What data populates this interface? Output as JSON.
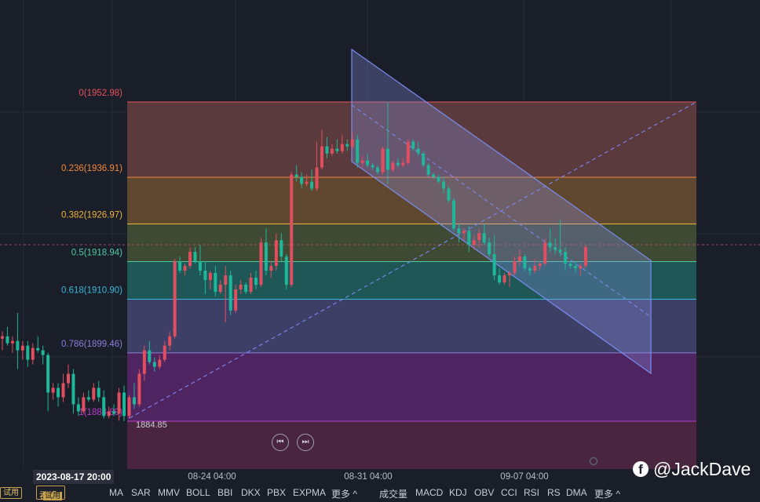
{
  "chart_data": {
    "type": "candlestick",
    "title": "",
    "price_scale": [
      1870,
      1965
    ],
    "low_marker": "1884.85",
    "fib_levels": [
      {
        "ratio": "0",
        "price": 1952.98,
        "label": "0(1952.98)",
        "color": "#e8515b"
      },
      {
        "ratio": "0.236",
        "price": 1936.91,
        "label": "0.236(1936.91)",
        "color": "#f08a3c"
      },
      {
        "ratio": "0.382",
        "price": 1926.97,
        "label": "0.382(1926.97)",
        "color": "#f0b43c"
      },
      {
        "ratio": "0.5",
        "price": 1918.94,
        "label": "0.5(1918.94)",
        "color": "#4ec9a0"
      },
      {
        "ratio": "0.618",
        "price": 1910.9,
        "label": "0.618(1910.90)",
        "color": "#39b7d8"
      },
      {
        "ratio": "0.786",
        "price": 1899.46,
        "label": "0.786(1899.46)",
        "color": "#8e7ddb"
      },
      {
        "ratio": "1",
        "price": 1884.89,
        "label": "1(1884.89)",
        "color": "#b83dc8"
      }
    ],
    "x_ticks": [
      "08-24 04:00",
      "08-31 04:00",
      "09-07 04:00"
    ],
    "cursor_date": "2023-08-17 20:00",
    "candles": [
      [
        1902.5,
        1904.0,
        1900.0,
        1903.0
      ],
      [
        1903.0,
        1905.0,
        1901.0,
        1901.5
      ],
      [
        1901.5,
        1903.0,
        1899.5,
        1902.0
      ],
      [
        1902.0,
        1908.0,
        1896.0,
        1900.0
      ],
      [
        1900.0,
        1902.0,
        1898.0,
        1901.0
      ],
      [
        1901.0,
        1902.0,
        1896.5,
        1898.0
      ],
      [
        1898.0,
        1901.5,
        1897.0,
        1900.5
      ],
      [
        1900.5,
        1903.0,
        1899.5,
        1900.0
      ],
      [
        1900.0,
        1901.0,
        1897.0,
        1899.0
      ],
      [
        1899.0,
        1899.5,
        1887.0,
        1891.0
      ],
      [
        1891.0,
        1893.0,
        1889.5,
        1892.0
      ],
      [
        1892.0,
        1893.0,
        1888.0,
        1890.0
      ],
      [
        1890.0,
        1895.0,
        1889.0,
        1893.0
      ],
      [
        1893.0,
        1897.0,
        1892.0,
        1895.0
      ],
      [
        1895.0,
        1896.0,
        1886.5,
        1888.5
      ],
      [
        1888.5,
        1890.0,
        1886.0,
        1887.0
      ],
      [
        1887.0,
        1891.0,
        1886.5,
        1890.0
      ],
      [
        1890.0,
        1891.5,
        1889.0,
        1889.5
      ],
      [
        1889.5,
        1893.0,
        1889.0,
        1892.0
      ],
      [
        1892.0,
        1893.5,
        1889.0,
        1890.0
      ],
      [
        1890.0,
        1891.5,
        1885.5,
        1886.0
      ],
      [
        1886.0,
        1888.0,
        1885.5,
        1887.0
      ],
      [
        1887.0,
        1888.5,
        1886.0,
        1886.5
      ],
      [
        1886.5,
        1892.0,
        1885.0,
        1891.0
      ],
      [
        1891.0,
        1892.5,
        1884.9,
        1886.0
      ],
      [
        1886.0,
        1890.5,
        1885.5,
        1890.0
      ],
      [
        1890.0,
        1893.0,
        1887.5,
        1888.5
      ],
      [
        1888.5,
        1896.0,
        1888.0,
        1895.0
      ],
      [
        1895.0,
        1901.0,
        1893.5,
        1900.0
      ],
      [
        1900.0,
        1902.0,
        1897.0,
        1897.5
      ],
      [
        1897.5,
        1898.5,
        1895.5,
        1896.5
      ],
      [
        1896.5,
        1899.0,
        1896.0,
        1898.0
      ],
      [
        1898.0,
        1902.0,
        1897.5,
        1901.0
      ],
      [
        1901.0,
        1904.0,
        1900.0,
        1903.0
      ],
      [
        1903.0,
        1919.5,
        1902.5,
        1919.0
      ],
      [
        1919.0,
        1920.0,
        1916.5,
        1917.0
      ],
      [
        1917.0,
        1918.5,
        1916.0,
        1918.0
      ],
      [
        1918.0,
        1922.0,
        1917.5,
        1921.0
      ],
      [
        1921.0,
        1922.0,
        1918.5,
        1919.0
      ],
      [
        1919.0,
        1922.5,
        1916.0,
        1917.0
      ],
      [
        1917.0,
        1919.0,
        1912.0,
        1915.0
      ],
      [
        1915.0,
        1917.0,
        1913.0,
        1916.5
      ],
      [
        1916.5,
        1918.0,
        1911.5,
        1912.5
      ],
      [
        1912.5,
        1915.0,
        1912.0,
        1914.0
      ],
      [
        1914.0,
        1918.0,
        1906.0,
        1916.0
      ],
      [
        1916.0,
        1917.0,
        1907.5,
        1908.5
      ],
      [
        1908.5,
        1914.0,
        1908.0,
        1913.0
      ],
      [
        1913.0,
        1915.0,
        1912.0,
        1914.0
      ],
      [
        1914.0,
        1914.5,
        1912.0,
        1912.5
      ],
      [
        1912.5,
        1916.5,
        1912.0,
        1915.5
      ],
      [
        1915.5,
        1917.0,
        1913.0,
        1914.0
      ],
      [
        1914.0,
        1924.0,
        1913.5,
        1923.0
      ],
      [
        1923.0,
        1926.0,
        1916.0,
        1917.0
      ],
      [
        1917.0,
        1919.0,
        1915.5,
        1918.0
      ],
      [
        1918.0,
        1925.0,
        1917.0,
        1923.5
      ],
      [
        1923.5,
        1925.0,
        1919.0,
        1920.0
      ],
      [
        1920.0,
        1920.5,
        1913.0,
        1914.0
      ],
      [
        1914.0,
        1938.0,
        1913.5,
        1937.5
      ],
      [
        1937.5,
        1939.5,
        1936.0,
        1937.0
      ],
      [
        1937.0,
        1938.0,
        1934.5,
        1935.5
      ],
      [
        1935.5,
        1937.5,
        1935.0,
        1936.0
      ],
      [
        1936.0,
        1938.5,
        1934.0,
        1934.5
      ],
      [
        1934.5,
        1944.5,
        1934.0,
        1939.0
      ],
      [
        1939.0,
        1947.0,
        1938.5,
        1943.5
      ],
      [
        1943.5,
        1945.5,
        1941.0,
        1942.0
      ],
      [
        1942.0,
        1944.0,
        1941.5,
        1943.0
      ],
      [
        1943.0,
        1945.0,
        1942.0,
        1942.5
      ],
      [
        1942.5,
        1946.0,
        1942.0,
        1944.0
      ],
      [
        1944.0,
        1945.0,
        1942.5,
        1943.5
      ],
      [
        1943.5,
        1946.5,
        1943.0,
        1945.0
      ],
      [
        1945.0,
        1946.0,
        1939.0,
        1940.0
      ],
      [
        1940.0,
        1941.5,
        1939.0,
        1940.5
      ],
      [
        1940.5,
        1942.0,
        1939.0,
        1939.5
      ],
      [
        1939.5,
        1940.0,
        1938.5,
        1939.0
      ],
      [
        1939.0,
        1939.5,
        1937.5,
        1938.0
      ],
      [
        1938.0,
        1943.5,
        1937.5,
        1943.0
      ],
      [
        1943.0,
        1953.0,
        1935.5,
        1938.5
      ],
      [
        1938.5,
        1940.5,
        1938.0,
        1940.0
      ],
      [
        1940.0,
        1941.0,
        1939.0,
        1939.5
      ],
      [
        1939.5,
        1941.0,
        1939.0,
        1940.0
      ],
      [
        1940.0,
        1945.0,
        1939.5,
        1944.5
      ],
      [
        1944.5,
        1945.0,
        1942.5,
        1943.0
      ],
      [
        1943.0,
        1944.5,
        1941.5,
        1942.0
      ],
      [
        1942.0,
        1942.5,
        1939.0,
        1939.5
      ],
      [
        1939.5,
        1940.0,
        1937.0,
        1937.5
      ],
      [
        1937.5,
        1938.0,
        1936.5,
        1937.0
      ],
      [
        1937.0,
        1937.5,
        1935.5,
        1936.0
      ],
      [
        1936.0,
        1937.0,
        1933.5,
        1934.5
      ],
      [
        1934.5,
        1935.0,
        1931.5,
        1932.0
      ],
      [
        1932.0,
        1932.5,
        1925.5,
        1926.0
      ],
      [
        1926.0,
        1927.0,
        1923.0,
        1925.0
      ],
      [
        1925.0,
        1926.0,
        1923.5,
        1925.5
      ],
      [
        1925.5,
        1926.5,
        1921.0,
        1922.5
      ],
      [
        1922.5,
        1924.5,
        1921.5,
        1923.5
      ],
      [
        1923.5,
        1926.0,
        1922.0,
        1925.0
      ],
      [
        1925.0,
        1927.0,
        1922.5,
        1923.0
      ],
      [
        1923.0,
        1924.0,
        1920.0,
        1920.5
      ],
      [
        1920.5,
        1924.5,
        1915.0,
        1916.0
      ],
      [
        1916.0,
        1917.5,
        1914.0,
        1914.5
      ],
      [
        1914.5,
        1916.5,
        1914.0,
        1916.0
      ],
      [
        1916.0,
        1917.0,
        1913.5,
        1916.5
      ],
      [
        1916.5,
        1920.0,
        1916.0,
        1919.0
      ],
      [
        1919.0,
        1921.5,
        1918.0,
        1920.0
      ],
      [
        1920.0,
        1920.5,
        1917.0,
        1917.5
      ],
      [
        1917.5,
        1918.0,
        1916.0,
        1917.0
      ],
      [
        1917.0,
        1919.5,
        1916.5,
        1918.0
      ],
      [
        1918.0,
        1919.0,
        1917.0,
        1918.5
      ],
      [
        1918.5,
        1924.0,
        1918.0,
        1923.0
      ],
      [
        1923.0,
        1926.0,
        1921.0,
        1922.0
      ],
      [
        1922.0,
        1924.0,
        1920.5,
        1921.5
      ],
      [
        1921.5,
        1928.0,
        1920.0,
        1921.0
      ],
      [
        1921.0,
        1922.0,
        1917.0,
        1918.5
      ],
      [
        1918.5,
        1919.0,
        1917.5,
        1918.0
      ],
      [
        1918.0,
        1919.0,
        1916.5,
        1917.5
      ],
      [
        1917.5,
        1918.5,
        1916.0,
        1918.0
      ],
      [
        1918.0,
        1922.5,
        1917.5,
        1922.0
      ]
    ]
  },
  "toolbar": {
    "badge": "试用",
    "tab_label": "吞没",
    "tab_badge": "试用",
    "main_indicators": [
      "MA",
      "SAR",
      "MMV",
      "BOLL",
      "BBI",
      "DKX",
      "PBX",
      "EXPMA"
    ],
    "more_main": "更多 ^",
    "sub_indicators": [
      "成交量",
      "MACD",
      "KDJ",
      "OBV",
      "CCI",
      "RSI",
      "RS",
      "DMA"
    ],
    "more_sub": "更多 ^"
  },
  "nav": {
    "prev_icon": "⏮",
    "next_icon": "⏭"
  },
  "watermark": {
    "icon": "f",
    "handle": "@JackDave"
  },
  "colors": {
    "bg": "#1a1e29",
    "up": "#e04f5f",
    "down": "#1fb79a",
    "channel": "#7b8cf0",
    "trend": "#7d86f2"
  }
}
